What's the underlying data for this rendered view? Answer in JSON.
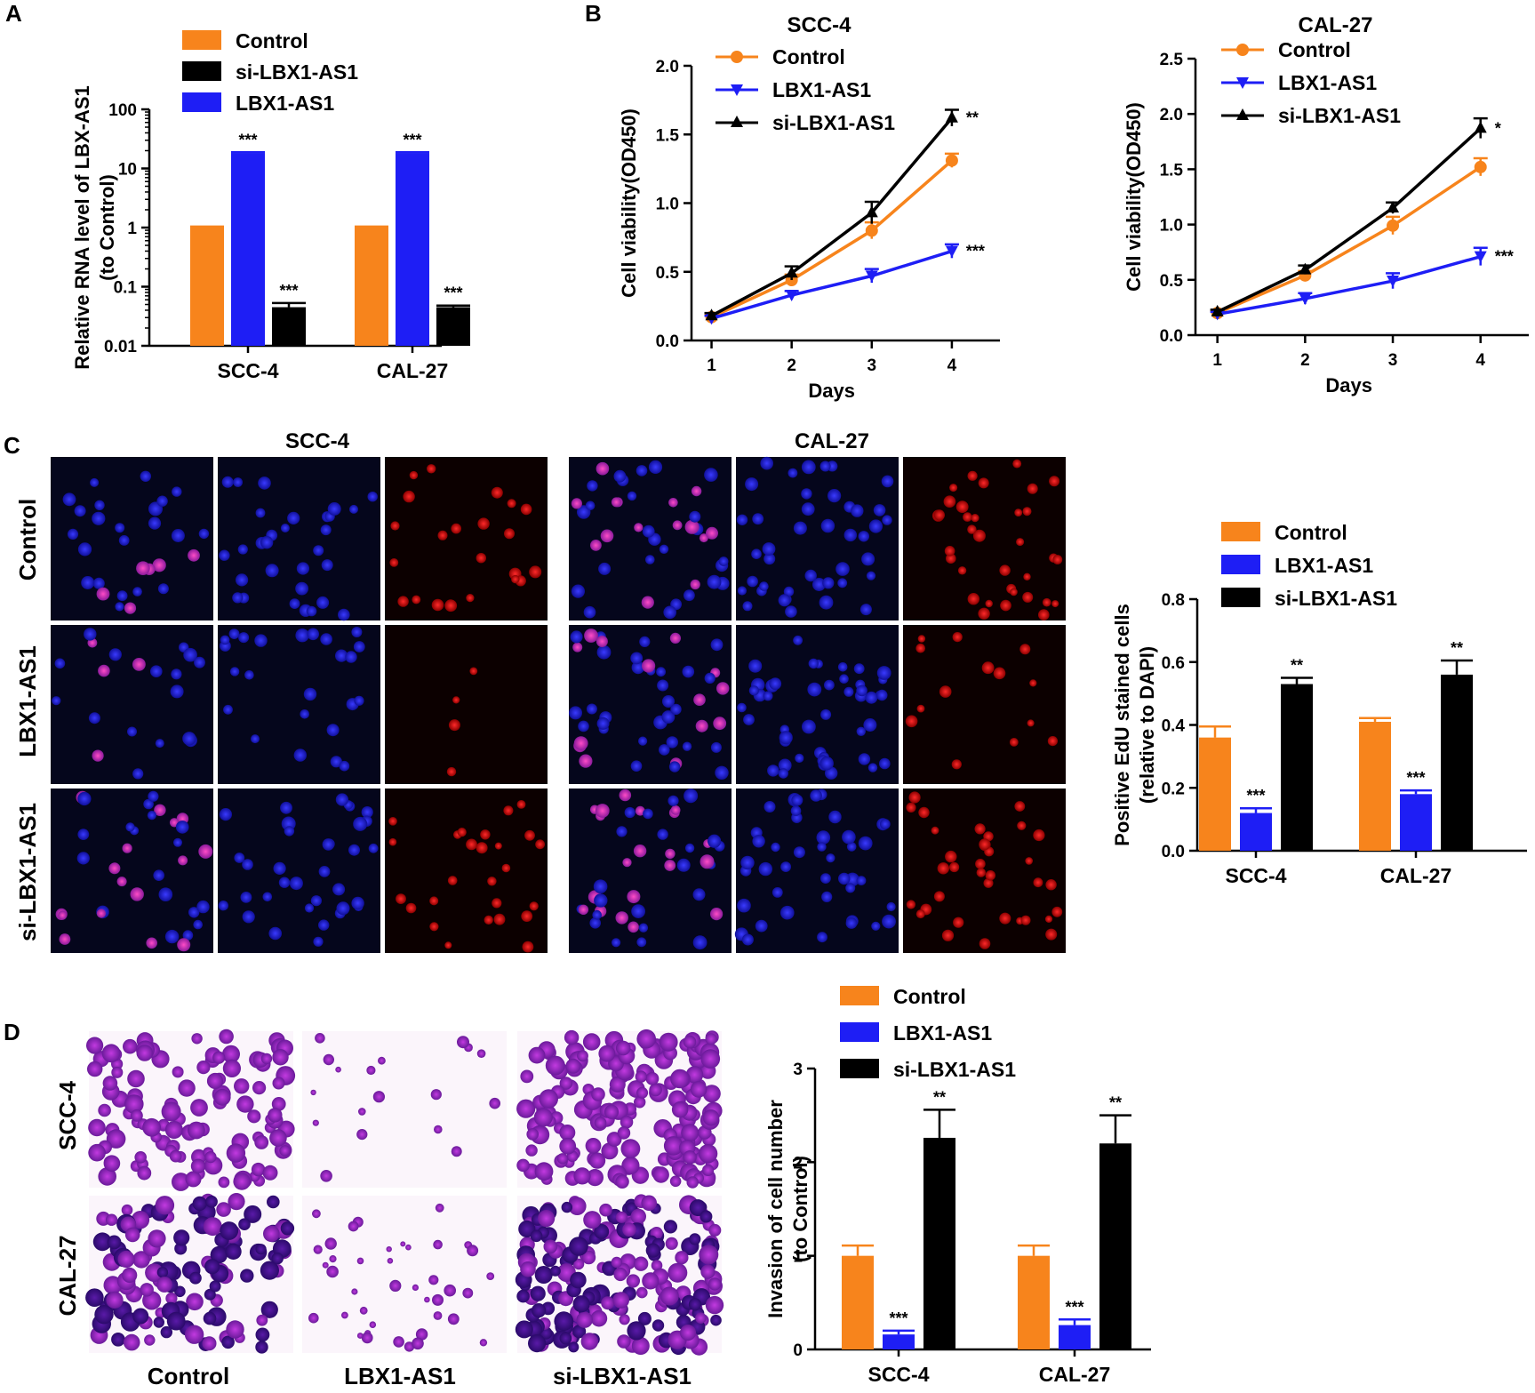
{
  "panel_labels": [
    "A",
    "B",
    "C",
    "D"
  ],
  "colors": {
    "control": "#f7841c",
    "lbx": "#1e1ef5",
    "si": "#000000"
  },
  "chart_data": [
    {
      "id": "A",
      "type": "bar",
      "scale": "log",
      "title": "",
      "xlabel": "",
      "ylabel": [
        "Relative RNA level of LBX-AS1",
        "(to Control)"
      ],
      "ylim": [
        0.01,
        100
      ],
      "yticks": [
        "0.01",
        "0.1",
        "1",
        "10",
        "100"
      ],
      "categories": [
        "SCC-4",
        "CAL-27"
      ],
      "legend": [
        "Control",
        "si-LBX1-AS1",
        "LBX1-AS1"
      ],
      "series": [
        {
          "name": "Control",
          "color": "#f7841c",
          "values": [
            1.0,
            1.0
          ],
          "errors": [
            0.04,
            0.04
          ],
          "stars": [
            "",
            ""
          ]
        },
        {
          "name": "LBX1-AS1",
          "color": "#1e1ef5",
          "values": [
            18,
            18
          ],
          "errors": [
            0.8,
            0.8
          ],
          "stars": [
            "***",
            "***"
          ]
        },
        {
          "name": "si-LBX1-AS1",
          "color": "#000000",
          "values": [
            0.045,
            0.045
          ],
          "errors": [
            0.008,
            0.003
          ],
          "stars": [
            "***",
            "***"
          ]
        }
      ]
    },
    {
      "id": "B1",
      "type": "line",
      "title": "SCC-4",
      "xlabel": "Days",
      "ylabel": "Cell viability(OD450)",
      "x": [
        1,
        2,
        3,
        4
      ],
      "ylim": [
        0,
        2.0
      ],
      "yticks": [
        "0.0",
        "0.5",
        "1.0",
        "1.5",
        "2.0"
      ],
      "xticks": [
        "1",
        "2",
        "3",
        "4"
      ],
      "legend": [
        "Control",
        "LBX1-AS1",
        "si-LBX1-AS1"
      ],
      "series": [
        {
          "name": "Control",
          "color": "#f7841c",
          "marker": "circle",
          "values": [
            0.17,
            0.44,
            0.8,
            1.31
          ],
          "errors": [
            0.02,
            0.04,
            0.06,
            0.05
          ],
          "star": ""
        },
        {
          "name": "LBX1-AS1",
          "color": "#1e1ef5",
          "marker": "triangle-down",
          "values": [
            0.16,
            0.33,
            0.47,
            0.65
          ],
          "errors": [
            0.02,
            0.03,
            0.05,
            0.05
          ],
          "star": "***"
        },
        {
          "name": "si-LBX1-AS1",
          "color": "#000000",
          "marker": "triangle-up",
          "values": [
            0.18,
            0.49,
            0.93,
            1.62
          ],
          "errors": [
            0.02,
            0.05,
            0.08,
            0.06
          ],
          "star": "**"
        }
      ]
    },
    {
      "id": "B2",
      "type": "line",
      "title": "CAL-27",
      "xlabel": "Days",
      "ylabel": "Cell viability(OD450)",
      "x": [
        1,
        2,
        3,
        4
      ],
      "ylim": [
        0,
        2.5
      ],
      "yticks": [
        "0.0",
        "0.5",
        "1.0",
        "1.5",
        "2.0",
        "2.5"
      ],
      "xticks": [
        "1",
        "2",
        "3",
        "4"
      ],
      "legend": [
        "Control",
        "LBX1-AS1",
        "si-LBX1-AS1"
      ],
      "series": [
        {
          "name": "Control",
          "color": "#f7841c",
          "marker": "circle",
          "values": [
            0.2,
            0.54,
            0.99,
            1.52
          ],
          "errors": [
            0.02,
            0.04,
            0.08,
            0.08
          ],
          "star": ""
        },
        {
          "name": "LBX1-AS1",
          "color": "#1e1ef5",
          "marker": "triangle-down",
          "values": [
            0.19,
            0.33,
            0.49,
            0.71
          ],
          "errors": [
            0.02,
            0.05,
            0.07,
            0.08
          ],
          "star": "***"
        },
        {
          "name": "si-LBX1-AS1",
          "color": "#000000",
          "marker": "triangle-up",
          "values": [
            0.21,
            0.59,
            1.15,
            1.87
          ],
          "errors": [
            0.02,
            0.04,
            0.05,
            0.09
          ],
          "star": "*"
        }
      ]
    },
    {
      "id": "C",
      "type": "bar",
      "title": "",
      "xlabel": "",
      "ylabel": [
        "Positive EdU stained cells",
        "(relative to DAPI)"
      ],
      "ylim": [
        0,
        0.8
      ],
      "yticks": [
        "0.0",
        "0.2",
        "0.4",
        "0.6",
        "0.8"
      ],
      "categories": [
        "SCC-4",
        "CAL-27"
      ],
      "legend": [
        "Control",
        "LBX1-AS1",
        "si-LBX1-AS1"
      ],
      "series": [
        {
          "name": "Control",
          "color": "#f7841c",
          "values": [
            0.36,
            0.41
          ],
          "errors": [
            0.035,
            0.012
          ],
          "stars": [
            "",
            ""
          ]
        },
        {
          "name": "LBX1-AS1",
          "color": "#1e1ef5",
          "values": [
            0.12,
            0.18
          ],
          "errors": [
            0.015,
            0.012
          ],
          "stars": [
            "***",
            "***"
          ]
        },
        {
          "name": "si-LBX1-AS1",
          "color": "#000000",
          "values": [
            0.53,
            0.56
          ],
          "errors": [
            0.02,
            0.045
          ],
          "stars": [
            "**",
            "**"
          ]
        }
      ]
    },
    {
      "id": "D",
      "type": "bar",
      "title": "",
      "xlabel": "",
      "ylabel": [
        "Invasion of cell number",
        "(to Control)"
      ],
      "ylim": [
        0,
        3
      ],
      "yticks": [
        "0",
        "1",
        "2",
        "3"
      ],
      "categories": [
        "SCC-4",
        "CAL-27"
      ],
      "legend": [
        "Control",
        "LBX1-AS1",
        "si-LBX1-AS1"
      ],
      "series": [
        {
          "name": "Control",
          "color": "#f7841c",
          "values": [
            1.0,
            1.0
          ],
          "errors": [
            0.11,
            0.11
          ],
          "stars": [
            "",
            ""
          ]
        },
        {
          "name": "LBX1-AS1",
          "color": "#1e1ef5",
          "values": [
            0.16,
            0.26
          ],
          "errors": [
            0.04,
            0.06
          ],
          "stars": [
            "***",
            "***"
          ]
        },
        {
          "name": "si-LBX1-AS1",
          "color": "#000000",
          "values": [
            2.26,
            2.2
          ],
          "errors": [
            0.3,
            0.3
          ],
          "stars": [
            "**",
            "**"
          ]
        }
      ]
    }
  ],
  "edu": {
    "titles": [
      "SCC-4",
      "CAL-27"
    ],
    "row_labels": [
      "Control",
      "LBX1-AS1",
      "si-LBX1-AS1"
    ]
  },
  "invasion": {
    "row_labels": [
      "SCC-4",
      "CAL-27"
    ],
    "col_labels": [
      "Control",
      "LBX1-AS1",
      "si-LBX1-AS1"
    ]
  }
}
